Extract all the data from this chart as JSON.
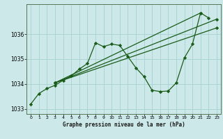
{
  "title": "Graphe pression niveau de la mer (hPa)",
  "bg_color": "#cce8e8",
  "grid_color": "#aad4d4",
  "line_color": "#1a5c1a",
  "marker_color": "#1a5c1a",
  "xlim": [
    -0.5,
    23.5
  ],
  "ylim": [
    1032.8,
    1037.2
  ],
  "yticks": [
    1033,
    1034,
    1035,
    1036
  ],
  "xticks": [
    0,
    1,
    2,
    3,
    4,
    5,
    6,
    7,
    8,
    9,
    10,
    11,
    12,
    13,
    14,
    15,
    16,
    17,
    18,
    19,
    20,
    21,
    22,
    23
  ],
  "lines": [
    {
      "x": [
        0,
        1,
        2,
        3,
        4,
        5,
        6,
        7,
        8,
        9,
        10,
        11,
        12,
        13,
        14,
        15,
        16,
        17,
        18,
        19,
        20,
        21,
        22
      ],
      "y": [
        1033.2,
        1033.62,
        1033.82,
        1033.95,
        1034.15,
        1034.32,
        1034.6,
        1034.82,
        1035.65,
        1035.5,
        1035.6,
        1035.55,
        1035.1,
        1034.65,
        1034.3,
        1033.75,
        1033.7,
        1033.72,
        1034.05,
        1035.05,
        1035.6,
        1036.85,
        1036.65
      ]
    },
    {
      "x": [
        3,
        21
      ],
      "y": [
        1034.05,
        1036.85
      ]
    },
    {
      "x": [
        3,
        23
      ],
      "y": [
        1034.05,
        1036.6
      ]
    },
    {
      "x": [
        3,
        23
      ],
      "y": [
        1034.05,
        1036.25
      ]
    }
  ]
}
